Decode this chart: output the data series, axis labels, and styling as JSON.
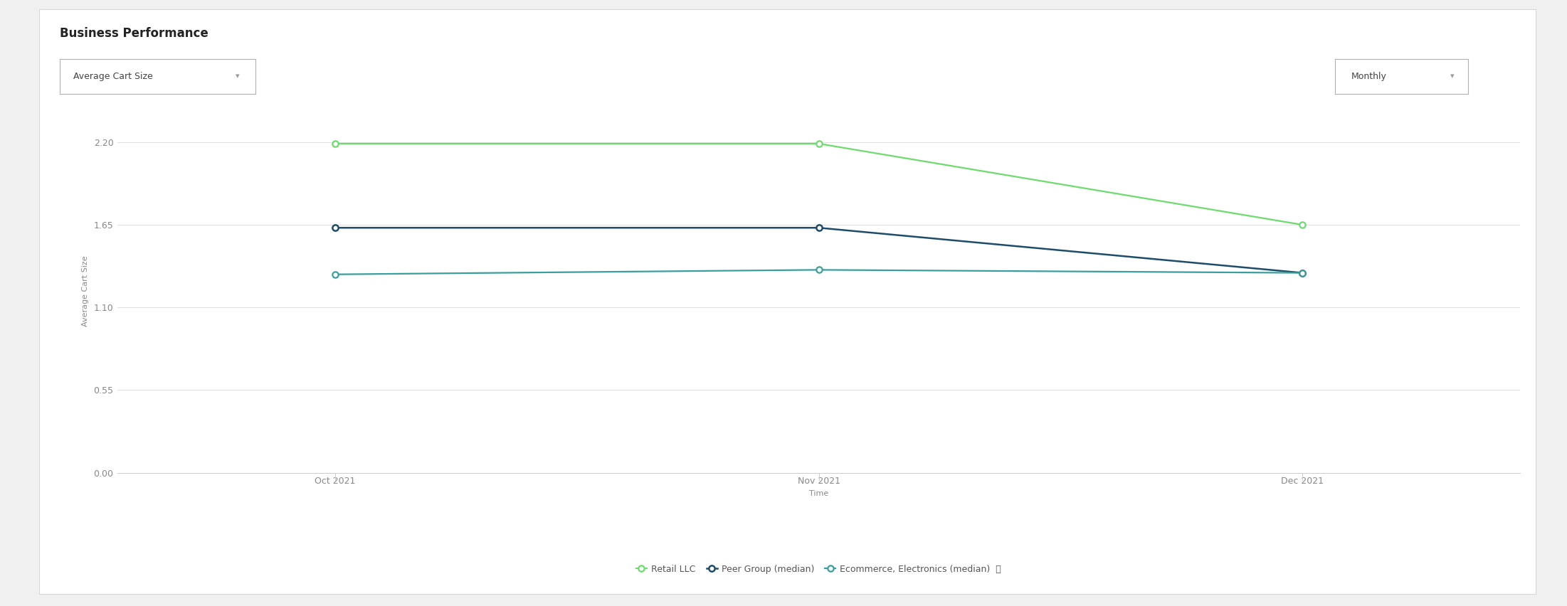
{
  "title": "Business Performance",
  "ylabel": "Average Cart Size",
  "xlabel": "Time",
  "dropdown_label": "Average Cart Size",
  "dropdown_right": "Monthly",
  "x_labels": [
    "Oct 2021",
    "Nov 2021",
    "Dec 2021"
  ],
  "x_values": [
    0,
    1,
    2
  ],
  "series": [
    {
      "name": "Retail LLC",
      "values": [
        2.19,
        2.19,
        1.65
      ],
      "color": "#6ddb6d",
      "linewidth": 1.6,
      "markersize": 6,
      "markeredgewidth": 1.6
    },
    {
      "name": "Peer Group (median)",
      "values": [
        1.63,
        1.63,
        1.33
      ],
      "color": "#1e4d6b",
      "linewidth": 1.8,
      "markersize": 6,
      "markeredgewidth": 1.8
    },
    {
      "name": "Ecommerce, Electronics (median)",
      "values": [
        1.32,
        1.35,
        1.33
      ],
      "color": "#3a9e9e",
      "linewidth": 1.6,
      "markersize": 6,
      "markeredgewidth": 1.6
    }
  ],
  "ylim": [
    0.0,
    2.42
  ],
  "yticks": [
    0.0,
    0.55,
    1.1,
    1.65,
    2.2
  ],
  "ytick_labels": [
    "0.00",
    "0.55",
    "1.10",
    "1.65",
    "2.20"
  ],
  "background_color": "#ffffff",
  "grid_color": "#e0e0e0",
  "title_fontsize": 12,
  "axis_label_fontsize": 8,
  "tick_fontsize": 9,
  "legend_fontsize": 9
}
